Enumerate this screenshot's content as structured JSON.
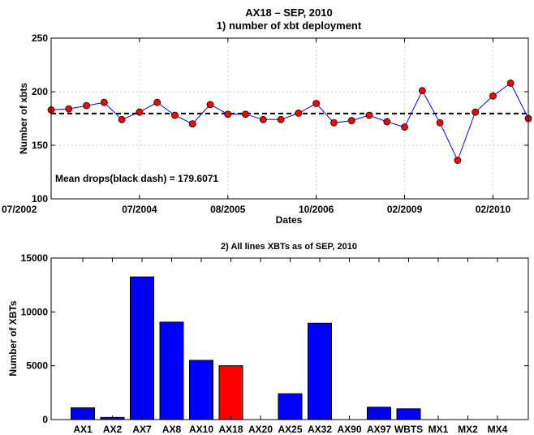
{
  "chart_data": [
    {
      "type": "line",
      "title": "AX18 – SEP, 2010",
      "subtitle": "1) number of xbt deployment",
      "xlabel": "Dates",
      "ylabel": "Number of xbts",
      "ylim": [
        100,
        250
      ],
      "yticks": [
        "100",
        "150",
        "200",
        "250"
      ],
      "xtick_labels": [
        "07/2002",
        "07/2004",
        "08/2005",
        "10/2006",
        "02/2009",
        "02/2010"
      ],
      "xtick_index": [
        0,
        5,
        10,
        15,
        20,
        25
      ],
      "grid": true,
      "series": [
        {
          "values": [
            183,
            184,
            187,
            190,
            174,
            181,
            190,
            178,
            170,
            188,
            179,
            179,
            174,
            174,
            180,
            189,
            171,
            173,
            178,
            172,
            167,
            201,
            171,
            136,
            181,
            196,
            208,
            175
          ],
          "color": "#0000ff",
          "marker_color": "#ff0000"
        }
      ],
      "mean_line": {
        "value": 179.6071,
        "style": "black dash"
      },
      "annotation": "Mean drops(black dash) = 179.6071"
    },
    {
      "type": "bar",
      "title": "2) All lines XBTs as of SEP, 2010",
      "xlabel": "",
      "ylabel": "Number of XBTs",
      "ylim": [
        0,
        15000
      ],
      "yticks": [
        "0",
        "5000",
        "10000",
        "15000"
      ],
      "grid": false,
      "categories": [
        "AX1",
        "AX2",
        "AX7",
        "AX8",
        "AX10",
        "AX18",
        "AX20",
        "AX25",
        "AX32",
        "AX90",
        "AX97",
        "WBTS",
        "MX1",
        "MX2",
        "MX4"
      ],
      "values": [
        1100,
        200,
        13250,
        9050,
        5500,
        5000,
        0,
        2400,
        8950,
        0,
        1150,
        1000,
        0,
        0,
        0
      ],
      "colors": [
        "#0000ff",
        "#0000ff",
        "#0000ff",
        "#0000ff",
        "#0000ff",
        "#ff0000",
        "#0000ff",
        "#0000ff",
        "#0000ff",
        "#0000ff",
        "#0000ff",
        "#0000ff",
        "#0000ff",
        "#0000ff",
        "#0000ff"
      ]
    }
  ]
}
